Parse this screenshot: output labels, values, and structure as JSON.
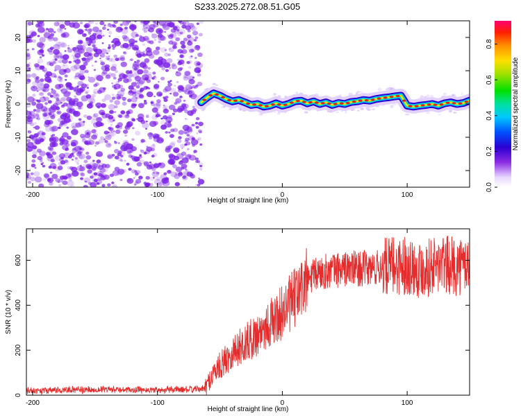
{
  "title": "S233.2025.272.08.51.G05",
  "colors": {
    "scatter": "#7a1fe6",
    "snr_line": "#e52b2b",
    "track_core": "#e02020",
    "track_mid": "#00e0a0",
    "track_edge": "#2a00d0"
  },
  "chart_data": [
    {
      "type": "heatmap",
      "title": "S233.2025.272.08.51.G05",
      "xlabel": "Height of straight line (km)",
      "ylabel": "Frequency (Hz)",
      "xlim": [
        -205,
        150
      ],
      "ylim": [
        -25,
        25
      ],
      "xticks": [
        -200,
        -100,
        0,
        100
      ],
      "yticks": [
        -20,
        -10,
        0,
        10,
        20
      ],
      "xtick_labels": [
        "-200",
        "-100",
        "0",
        "100"
      ],
      "ytick_labels": [
        "-20",
        "-10",
        "0",
        "10",
        "20"
      ],
      "noise_region_x": [
        -205,
        -65
      ],
      "signal_start_x": -65,
      "signal_track": {
        "x": [
          -65,
          -60,
          -55,
          -50,
          -45,
          -40,
          -35,
          -30,
          -25,
          -20,
          -15,
          -10,
          -5,
          0,
          5,
          10,
          15,
          20,
          25,
          30,
          35,
          40,
          45,
          50,
          55,
          60,
          65,
          70,
          75,
          80,
          85,
          90,
          95,
          100,
          105,
          110,
          115,
          120,
          125,
          130,
          135,
          140,
          145,
          150
        ],
        "freq": [
          0.5,
          2.0,
          3.2,
          2.5,
          1.5,
          0.8,
          1.2,
          0.5,
          -0.3,
          0.0,
          -0.8,
          -0.5,
          0.2,
          -0.5,
          0.0,
          0.8,
          1.0,
          0.2,
          0.8,
          0.0,
          0.5,
          -0.3,
          0.3,
          0.0,
          0.6,
          0.8,
          1.2,
          1.0,
          1.5,
          1.8,
          2.0,
          2.3,
          2.5,
          -0.5,
          -0.8,
          -0.5,
          -0.3,
          0.0,
          -0.5,
          0.2,
          0.5,
          0.0,
          0.3,
          1.0
        ]
      },
      "colorbar": {
        "label": "Normalized spectral amplitude",
        "range": [
          0.0,
          0.93
        ],
        "ticks": [
          0.0,
          0.2,
          0.4,
          0.6,
          0.8
        ],
        "tick_labels": [
          "0.0",
          "0.2",
          "0.4",
          "0.6",
          "0.8"
        ]
      }
    },
    {
      "type": "line",
      "xlabel": "Height of straight line (km)",
      "ylabel": "SNR (10 * v/v)",
      "xlim": [
        -205,
        150
      ],
      "ylim": [
        0,
        740
      ],
      "xticks": [
        -200,
        -100,
        0,
        100
      ],
      "yticks": [
        0,
        200,
        400,
        600
      ],
      "xtick_labels": [
        "-200",
        "-100",
        "0",
        "100"
      ],
      "ytick_labels": [
        "0",
        "200",
        "400",
        "600"
      ],
      "series": [
        {
          "name": "SNR",
          "x": [
            -205,
            -180,
            -160,
            -140,
            -120,
            -100,
            -80,
            -62,
            -58,
            -55,
            -50,
            -45,
            -40,
            -35,
            -30,
            -25,
            -20,
            -15,
            -10,
            -5,
            0,
            5,
            10,
            15,
            20,
            25,
            30,
            40,
            50,
            60,
            70,
            80,
            90,
            100,
            110,
            120,
            130,
            140,
            150
          ],
          "values": [
            20,
            22,
            24,
            25,
            23,
            24,
            25,
            28,
            70,
            100,
            130,
            160,
            190,
            210,
            230,
            250,
            270,
            300,
            320,
            340,
            370,
            400,
            430,
            470,
            510,
            530,
            545,
            555,
            560,
            565,
            560,
            570,
            575,
            580,
            560,
            575,
            580,
            570,
            590
          ]
        }
      ]
    }
  ]
}
